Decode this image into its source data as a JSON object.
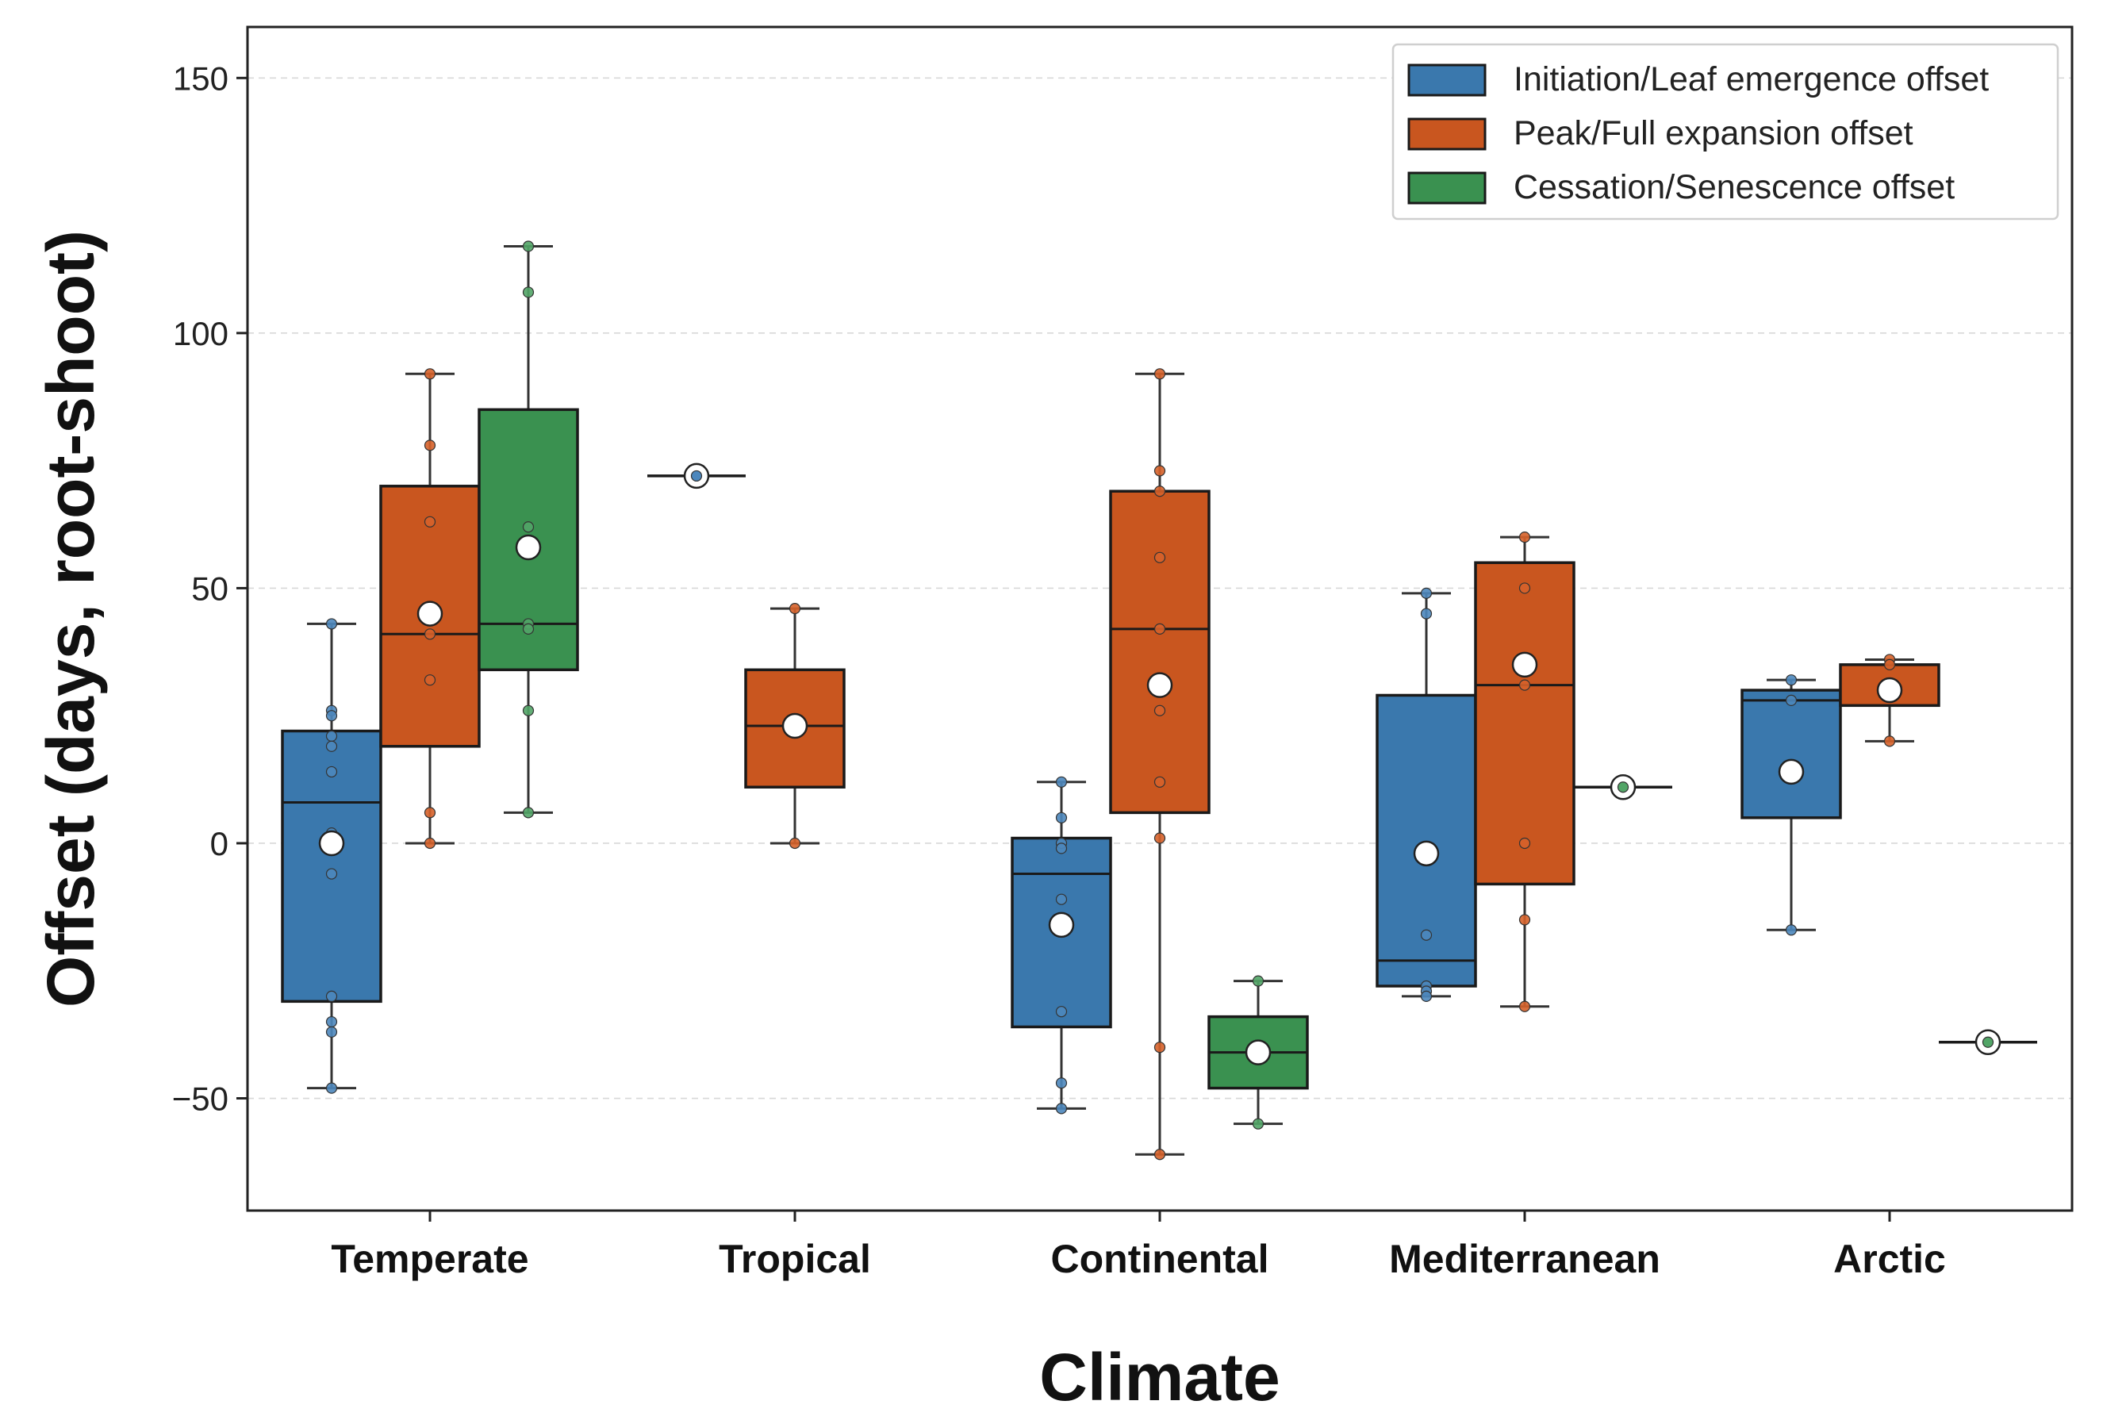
{
  "chart_data": {
    "type": "box",
    "title": "",
    "xlabel": "Climate",
    "ylabel": "Offset (days, root-shoot)",
    "ylim": [
      -72,
      160
    ],
    "yticks": [
      -50,
      0,
      50,
      100,
      150
    ],
    "ytick_labels": [
      "−50",
      "0",
      "50",
      "100",
      "150"
    ],
    "grid": "horizontal dashed",
    "legend_position": "top-right",
    "categories": [
      "Temperate",
      "Tropical",
      "Continental",
      "Mediterranean",
      "Arctic"
    ],
    "series": [
      {
        "name": "Initiation/Leaf emergence offset",
        "color": "#3a78ad",
        "point_color": "#4c87bd",
        "boxes": [
          {
            "category": "Temperate",
            "q1": -31,
            "median": 8,
            "q3": 22,
            "whisker_low": -48,
            "whisker_high": 43,
            "mean": 0,
            "points": [
              43,
              26,
              25,
              21,
              19,
              14,
              2,
              0,
              -6,
              -30,
              -35,
              -37,
              -48
            ]
          },
          null,
          {
            "category": "Continental",
            "q1": -36,
            "median": -6,
            "q3": 1,
            "whisker_low": -52,
            "whisker_high": 12,
            "mean": -16,
            "points": [
              12,
              5,
              0,
              -1,
              -11,
              -33,
              -47,
              -52
            ]
          },
          {
            "category": "Mediterranean",
            "q1": -28,
            "median": -23,
            "q3": 29,
            "whisker_low": -30,
            "whisker_high": 49,
            "mean": -2,
            "points": [
              49,
              45,
              -18,
              -28,
              -29,
              -30
            ]
          },
          {
            "category": "Arctic",
            "q1": 5,
            "median": 28,
            "q3": 30,
            "whisker_low": -17,
            "whisker_high": 32,
            "mean": 14,
            "points": [
              32,
              28,
              -17
            ]
          }
        ],
        "singles": [
          {
            "category": "Tropical",
            "value": 72
          }
        ]
      },
      {
        "name": "Peak/Full expansion offset",
        "color": "#c9561f",
        "point_color": "#d6622a",
        "boxes": [
          {
            "category": "Temperate",
            "q1": 19,
            "median": 41,
            "q3": 70,
            "whisker_low": 0,
            "whisker_high": 92,
            "mean": 45,
            "points": [
              92,
              78,
              63,
              41,
              32,
              6,
              0
            ]
          },
          {
            "category": "Tropical",
            "q1": 11,
            "median": 23,
            "q3": 34,
            "whisker_low": 0,
            "whisker_high": 46,
            "mean": 23,
            "points": [
              46,
              23,
              0
            ]
          },
          {
            "category": "Continental",
            "q1": 6,
            "median": 42,
            "q3": 69,
            "whisker_low": -61,
            "whisker_high": 92,
            "mean": 31,
            "points": [
              92,
              73,
              69,
              56,
              42,
              26,
              12,
              1,
              -40,
              -61
            ]
          },
          {
            "category": "Mediterranean",
            "q1": -8,
            "median": 31,
            "q3": 55,
            "whisker_low": -32,
            "whisker_high": 60,
            "mean": 35,
            "points": [
              60,
              50,
              31,
              0,
              -15,
              -32
            ]
          },
          {
            "category": "Arctic",
            "q1": 27,
            "median": 35,
            "q3": 35,
            "whisker_low": 20,
            "whisker_high": 36,
            "mean": 30,
            "points": [
              36,
              35,
              20
            ]
          }
        ],
        "singles": []
      },
      {
        "name": "Cessation/Senescence offset",
        "color": "#3a9150",
        "point_color": "#52a567",
        "boxes": [
          {
            "category": "Temperate",
            "q1": 34,
            "median": 43,
            "q3": 85,
            "whisker_low": 6,
            "whisker_high": 117,
            "mean": 58,
            "points": [
              117,
              108,
              62,
              43,
              42,
              26,
              6
            ]
          },
          null,
          {
            "category": "Continental",
            "q1": -48,
            "median": -41,
            "q3": -34,
            "whisker_low": -55,
            "whisker_high": -27,
            "mean": -41,
            "points": [
              -27,
              -41,
              -55
            ]
          },
          {
            "category": "Mediterranean",
            "single": 11
          },
          {
            "category": "Arctic",
            "single": -39
          }
        ],
        "singles": [
          {
            "category": "Mediterranean",
            "value": 11
          },
          {
            "category": "Arctic",
            "value": -39
          }
        ]
      }
    ]
  }
}
